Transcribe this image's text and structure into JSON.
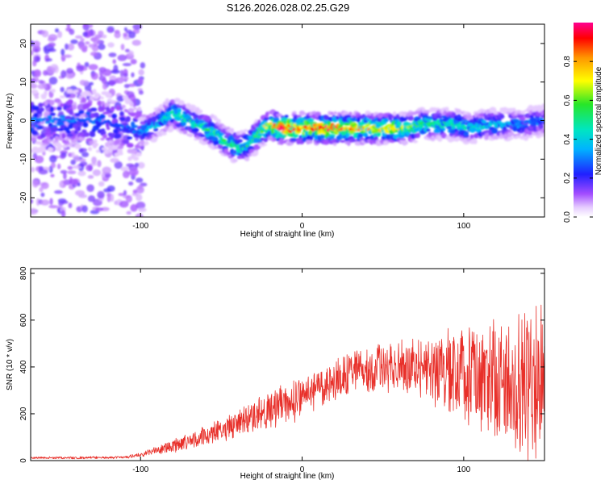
{
  "title": "S126.2026.028.02.25.G29",
  "colors": {
    "snr_line": "#e8302a",
    "axis": "#000000"
  },
  "chart_data": [
    {
      "type": "heatmap",
      "title": "S126.2026.028.02.25.G29",
      "xlabel": "Height of straight line (km)",
      "ylabel": "Frequency (Hz)",
      "xlim": [
        -168,
        150
      ],
      "ylim": [
        -25,
        25
      ],
      "xticks": [
        -100,
        0,
        100
      ],
      "xtick_labels": [
        "-100",
        "0",
        "100"
      ],
      "yticks": [
        -20,
        -10,
        0,
        10,
        20
      ],
      "ytick_labels": [
        "-20",
        "-10",
        "0",
        "10",
        "20"
      ],
      "colorbar": {
        "label": "Normalized spectral amplitude",
        "range": [
          0,
          1
        ],
        "ticks": [
          0,
          0.2,
          0.4,
          0.6,
          0.8
        ],
        "tick_labels": [
          "0.0",
          "0.2",
          "0.4",
          "0.6",
          "0.8"
        ]
      },
      "ridge": {
        "x": [
          -168,
          -150,
          -130,
          -115,
          -100,
          -90,
          -80,
          -75,
          -65,
          -55,
          -45,
          -38,
          -32,
          -26,
          -20,
          -15,
          -8,
          -3,
          5,
          15,
          25,
          35,
          45,
          55,
          65,
          75,
          85,
          95,
          105,
          115,
          125,
          135,
          150
        ],
        "frequency": [
          0,
          0,
          0,
          -1,
          -3,
          -1,
          2,
          1,
          -1,
          -3,
          -6,
          -7,
          -6,
          -3,
          -1,
          -2,
          -2,
          -2,
          -2,
          -2,
          -2,
          -2,
          -2,
          -2,
          -2,
          -1,
          -1,
          -1,
          -2,
          -1,
          -1,
          -1,
          0
        ],
        "amplitude": [
          0.3,
          0.3,
          0.28,
          0.25,
          0.3,
          0.38,
          0.45,
          0.5,
          0.45,
          0.55,
          0.5,
          0.5,
          0.48,
          0.6,
          0.7,
          0.9,
          0.95,
          0.8,
          0.85,
          0.9,
          0.85,
          0.78,
          0.72,
          0.72,
          0.62,
          0.55,
          0.5,
          0.45,
          0.42,
          0.4,
          0.35,
          0.3,
          0.3
        ]
      }
    },
    {
      "type": "line",
      "xlabel": "Height of straight line (km)",
      "ylabel": "SNR (10 * v/v)",
      "xlim": [
        -168,
        150
      ],
      "ylim": [
        0,
        820
      ],
      "xticks": [
        -100,
        0,
        100
      ],
      "xtick_labels": [
        "-100",
        "0",
        "100"
      ],
      "yticks": [
        0,
        200,
        400,
        600,
        800
      ],
      "ytick_labels": [
        "0",
        "200",
        "400",
        "600",
        "800"
      ],
      "series": [
        {
          "name": "SNR",
          "envelope": {
            "x": [
              -168,
              -140,
              -110,
              -100,
              -90,
              -80,
              -70,
              -60,
              -50,
              -40,
              -30,
              -20,
              -10,
              0,
              10,
              20,
              30,
              40,
              50,
              60,
              70,
              80,
              90,
              100,
              110,
              120,
              130,
              140,
              150
            ],
            "mean": [
              12,
              12,
              14,
              25,
              45,
              60,
              80,
              105,
              130,
              160,
              185,
              210,
              240,
              270,
              300,
              340,
              370,
              390,
              400,
              400,
              395,
              380,
              370,
              360,
              345,
              340,
              320,
              320,
              310
            ],
            "spread": [
              5,
              6,
              6,
              12,
              20,
              30,
              40,
              50,
              60,
              70,
              80,
              90,
              100,
              110,
              115,
              110,
              100,
              100,
              110,
              125,
              145,
              170,
              200,
              230,
              260,
              290,
              320,
              360,
              380
            ]
          }
        }
      ]
    }
  ]
}
